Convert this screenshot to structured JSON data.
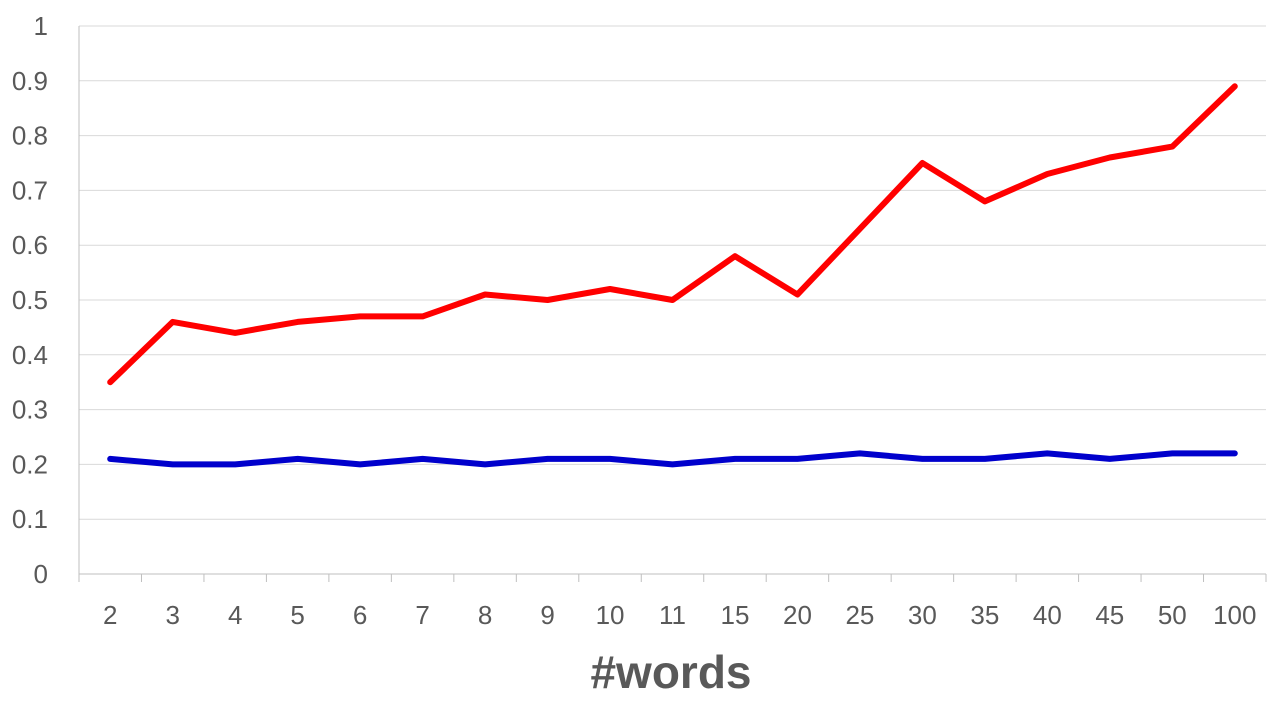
{
  "chart_data": {
    "type": "line",
    "title": "",
    "xlabel": "#words",
    "ylabel": "",
    "categories": [
      "2",
      "3",
      "4",
      "5",
      "6",
      "7",
      "8",
      "9",
      "10",
      "11",
      "15",
      "20",
      "25",
      "30",
      "35",
      "40",
      "45",
      "50",
      "100"
    ],
    "ylim": [
      0,
      1
    ],
    "yticks": [
      "0",
      "0.1",
      "0.2",
      "0.3",
      "0.4",
      "0.5",
      "0.6",
      "0.7",
      "0.8",
      "0.9",
      "1"
    ],
    "grid": true,
    "legend": "none",
    "series": [
      {
        "color": "#ff0000",
        "values": [
          0.35,
          0.46,
          0.44,
          0.46,
          0.47,
          0.47,
          0.51,
          0.5,
          0.52,
          0.5,
          0.58,
          0.51,
          0.63,
          0.75,
          0.68,
          0.73,
          0.76,
          0.78,
          0.89
        ]
      },
      {
        "color": "#0000cc",
        "values": [
          0.21,
          0.2,
          0.2,
          0.21,
          0.2,
          0.21,
          0.2,
          0.21,
          0.21,
          0.2,
          0.21,
          0.21,
          0.22,
          0.21,
          0.21,
          0.22,
          0.21,
          0.22,
          0.22
        ]
      }
    ]
  }
}
